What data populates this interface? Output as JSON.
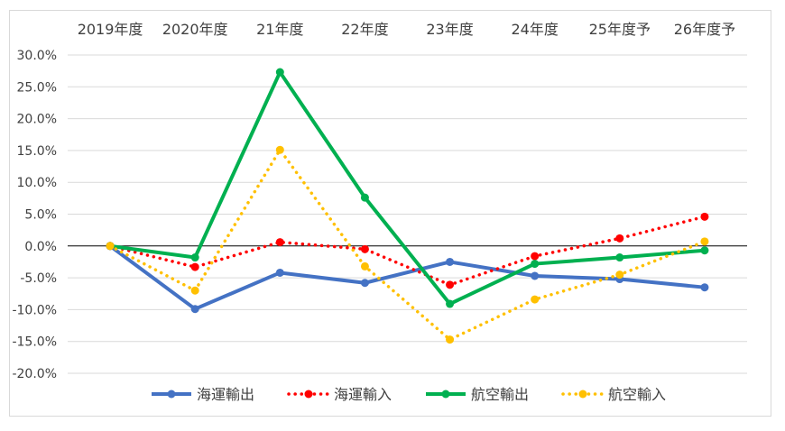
{
  "chart_data": {
    "type": "line",
    "categories": [
      "2019年度",
      "2020年度",
      "21年度",
      "22年度",
      "23年度",
      "24年度",
      "25年度予",
      "26年度予"
    ],
    "ylim": [
      -20,
      30
    ],
    "ytick_step": 5,
    "ytick_format": "percent-1dp",
    "grid": true,
    "legend_position": "bottom",
    "x_labels_position": "top",
    "series": [
      {
        "name": "海運輸出",
        "color": "#4472c4",
        "style": "solid",
        "values": [
          0.0,
          -9.9,
          -4.2,
          -5.8,
          -2.5,
          -4.7,
          -5.2,
          -6.5
        ]
      },
      {
        "name": "海運輸入",
        "color": "#ff0000",
        "style": "dotted",
        "values": [
          0.0,
          -3.3,
          0.6,
          -0.5,
          -6.1,
          -1.6,
          1.2,
          4.6
        ]
      },
      {
        "name": "航空輸出",
        "color": "#00b050",
        "style": "solid",
        "values": [
          0.0,
          -1.8,
          27.3,
          7.6,
          -9.1,
          -2.8,
          -1.8,
          -0.7
        ]
      },
      {
        "name": "航空輸入",
        "color": "#ffc000",
        "style": "dotted",
        "values": [
          0.0,
          -7.0,
          15.1,
          -3.2,
          -14.7,
          -8.4,
          -4.5,
          0.7
        ]
      }
    ]
  }
}
